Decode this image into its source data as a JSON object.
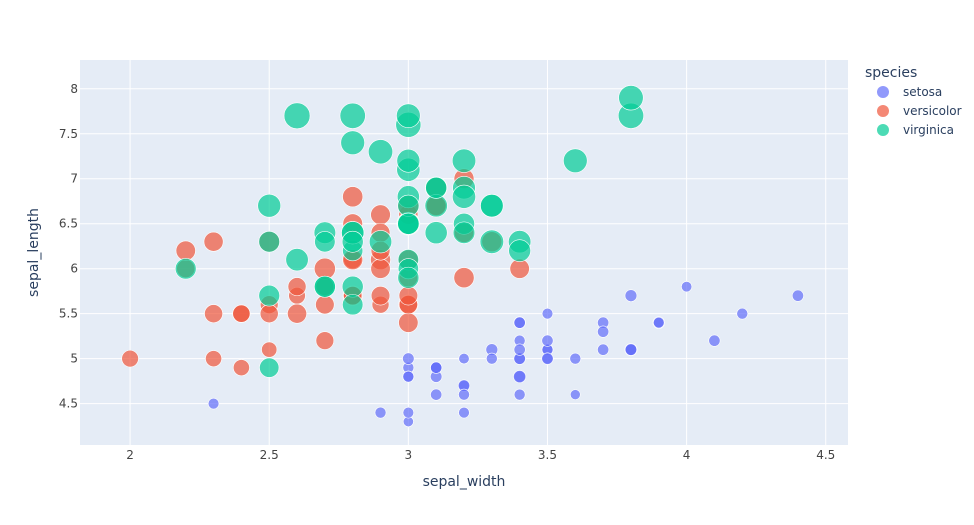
{
  "chart_data": {
    "type": "scatter",
    "xlabel": "sepal_width",
    "ylabel": "sepal_length",
    "xlim": [
      1.82,
      4.58
    ],
    "ylim": [
      4.04,
      8.32
    ],
    "x_ticks": [
      2,
      2.5,
      3,
      3.5,
      4,
      4.5
    ],
    "y_ticks": [
      4.5,
      5,
      5.5,
      6,
      6.5,
      7,
      7.5,
      8
    ],
    "grid": true,
    "size_encoding": "petal_length",
    "legend": {
      "title": "species",
      "placement": "right"
    },
    "series": [
      {
        "name": "setosa",
        "color": "#636efa",
        "points": [
          [
            3.5,
            5.1,
            1.4
          ],
          [
            3.0,
            4.9,
            1.4
          ],
          [
            3.2,
            4.7,
            1.3
          ],
          [
            3.1,
            4.6,
            1.5
          ],
          [
            3.6,
            5.0,
            1.4
          ],
          [
            3.9,
            5.4,
            1.7
          ],
          [
            3.4,
            4.6,
            1.4
          ],
          [
            3.4,
            5.0,
            1.5
          ],
          [
            2.9,
            4.4,
            1.4
          ],
          [
            3.1,
            4.9,
            1.5
          ],
          [
            3.7,
            5.4,
            1.5
          ],
          [
            3.4,
            4.8,
            1.6
          ],
          [
            3.0,
            4.8,
            1.4
          ],
          [
            3.0,
            4.3,
            1.1
          ],
          [
            4.0,
            5.8,
            1.2
          ],
          [
            4.4,
            5.7,
            1.5
          ],
          [
            3.9,
            5.4,
            1.3
          ],
          [
            3.5,
            5.1,
            1.4
          ],
          [
            3.8,
            5.7,
            1.7
          ],
          [
            3.8,
            5.1,
            1.5
          ],
          [
            3.4,
            5.4,
            1.7
          ],
          [
            3.7,
            5.1,
            1.5
          ],
          [
            3.6,
            4.6,
            1.0
          ],
          [
            3.3,
            5.1,
            1.7
          ],
          [
            3.4,
            4.8,
            1.9
          ],
          [
            3.0,
            5.0,
            1.6
          ],
          [
            3.4,
            5.0,
            1.6
          ],
          [
            3.5,
            5.2,
            1.5
          ],
          [
            3.4,
            5.2,
            1.4
          ],
          [
            3.2,
            4.7,
            1.6
          ],
          [
            3.1,
            4.8,
            1.6
          ],
          [
            3.4,
            5.4,
            1.5
          ],
          [
            4.1,
            5.2,
            1.5
          ],
          [
            4.2,
            5.5,
            1.4
          ],
          [
            3.1,
            4.9,
            1.5
          ],
          [
            3.2,
            5.0,
            1.2
          ],
          [
            3.5,
            5.5,
            1.3
          ],
          [
            3.1,
            4.9,
            1.5
          ],
          [
            3.0,
            4.4,
            1.3
          ],
          [
            3.4,
            5.1,
            1.5
          ],
          [
            3.5,
            5.0,
            1.3
          ],
          [
            2.3,
            4.5,
            1.3
          ],
          [
            3.2,
            4.4,
            1.3
          ],
          [
            3.5,
            5.0,
            1.6
          ],
          [
            3.8,
            5.1,
            1.9
          ],
          [
            3.0,
            4.8,
            1.4
          ],
          [
            3.8,
            5.1,
            1.6
          ],
          [
            3.2,
            4.6,
            1.4
          ],
          [
            3.7,
            5.3,
            1.5
          ],
          [
            3.3,
            5.0,
            1.4
          ]
        ]
      },
      {
        "name": "versicolor",
        "color": "#ef553b",
        "points": [
          [
            3.2,
            7.0,
            4.7
          ],
          [
            3.2,
            6.4,
            4.5
          ],
          [
            3.1,
            6.9,
            4.9
          ],
          [
            2.3,
            5.5,
            4.0
          ],
          [
            2.8,
            6.5,
            4.6
          ],
          [
            2.8,
            5.7,
            4.5
          ],
          [
            3.3,
            6.3,
            4.7
          ],
          [
            2.4,
            4.9,
            3.3
          ],
          [
            2.9,
            6.6,
            4.6
          ],
          [
            2.7,
            5.2,
            3.9
          ],
          [
            2.0,
            5.0,
            3.5
          ],
          [
            3.0,
            5.9,
            4.2
          ],
          [
            2.2,
            6.0,
            4.0
          ],
          [
            2.9,
            6.1,
            4.7
          ],
          [
            2.9,
            5.6,
            3.6
          ],
          [
            3.1,
            6.7,
            4.4
          ],
          [
            3.0,
            5.6,
            4.5
          ],
          [
            2.7,
            5.8,
            4.1
          ],
          [
            2.2,
            6.2,
            4.5
          ],
          [
            2.5,
            5.6,
            3.9
          ],
          [
            3.2,
            5.9,
            4.8
          ],
          [
            2.8,
            6.1,
            4.0
          ],
          [
            2.5,
            6.3,
            4.9
          ],
          [
            2.8,
            6.1,
            4.7
          ],
          [
            2.9,
            6.4,
            4.3
          ],
          [
            3.0,
            6.6,
            4.4
          ],
          [
            2.8,
            6.8,
            4.8
          ],
          [
            3.0,
            6.7,
            5.0
          ],
          [
            2.9,
            6.0,
            4.5
          ],
          [
            2.6,
            5.7,
            3.5
          ],
          [
            2.4,
            5.5,
            3.8
          ],
          [
            2.4,
            5.5,
            3.7
          ],
          [
            2.7,
            5.8,
            3.9
          ],
          [
            2.7,
            6.0,
            5.1
          ],
          [
            3.0,
            5.4,
            4.5
          ],
          [
            3.4,
            6.0,
            4.5
          ],
          [
            3.1,
            6.7,
            4.7
          ],
          [
            2.3,
            6.3,
            4.4
          ],
          [
            3.0,
            5.6,
            4.1
          ],
          [
            2.5,
            5.5,
            4.0
          ],
          [
            2.6,
            5.5,
            4.4
          ],
          [
            3.0,
            6.1,
            4.6
          ],
          [
            2.6,
            5.8,
            4.0
          ],
          [
            2.3,
            5.0,
            3.3
          ],
          [
            2.7,
            5.6,
            4.2
          ],
          [
            3.0,
            5.7,
            4.2
          ],
          [
            2.9,
            5.7,
            4.2
          ],
          [
            2.9,
            6.2,
            4.3
          ],
          [
            2.5,
            5.1,
            3.0
          ],
          [
            2.8,
            5.7,
            4.1
          ]
        ]
      },
      {
        "name": "virginica",
        "color": "#00cc96",
        "points": [
          [
            3.3,
            6.3,
            6.0
          ],
          [
            2.7,
            5.8,
            5.1
          ],
          [
            3.0,
            7.1,
            5.9
          ],
          [
            2.9,
            6.3,
            5.6
          ],
          [
            3.0,
            6.5,
            5.8
          ],
          [
            3.0,
            7.6,
            6.6
          ],
          [
            2.5,
            4.9,
            4.5
          ],
          [
            2.9,
            7.3,
            6.3
          ],
          [
            2.5,
            6.7,
            5.8
          ],
          [
            3.6,
            7.2,
            6.1
          ],
          [
            3.2,
            6.5,
            5.1
          ],
          [
            2.7,
            6.4,
            5.3
          ],
          [
            3.0,
            6.8,
            5.5
          ],
          [
            2.5,
            5.7,
            5.0
          ],
          [
            2.8,
            5.8,
            5.1
          ],
          [
            3.2,
            6.4,
            5.3
          ],
          [
            3.0,
            6.5,
            5.5
          ],
          [
            3.8,
            7.7,
            6.7
          ],
          [
            2.6,
            7.7,
            6.9
          ],
          [
            2.2,
            6.0,
            5.0
          ],
          [
            3.2,
            6.9,
            5.7
          ],
          [
            2.8,
            5.6,
            4.9
          ],
          [
            2.8,
            7.7,
            6.7
          ],
          [
            2.7,
            6.3,
            4.9
          ],
          [
            3.3,
            6.7,
            5.7
          ],
          [
            3.2,
            7.2,
            6.0
          ],
          [
            2.8,
            6.2,
            4.8
          ],
          [
            3.0,
            6.1,
            4.9
          ],
          [
            2.8,
            6.4,
            5.6
          ],
          [
            3.0,
            7.2,
            5.8
          ],
          [
            2.8,
            7.4,
            6.1
          ],
          [
            3.8,
            7.9,
            6.4
          ],
          [
            2.8,
            6.4,
            5.6
          ],
          [
            2.8,
            6.3,
            5.1
          ],
          [
            2.6,
            6.1,
            5.6
          ],
          [
            3.0,
            7.7,
            6.1
          ],
          [
            3.4,
            6.3,
            5.6
          ],
          [
            3.1,
            6.4,
            5.5
          ],
          [
            3.0,
            6.0,
            4.8
          ],
          [
            3.1,
            6.9,
            5.4
          ],
          [
            3.1,
            6.7,
            5.6
          ],
          [
            3.1,
            6.9,
            5.1
          ],
          [
            2.7,
            5.8,
            5.1
          ],
          [
            3.2,
            6.8,
            5.9
          ],
          [
            3.3,
            6.7,
            5.7
          ],
          [
            3.0,
            6.7,
            5.2
          ],
          [
            2.5,
            6.3,
            5.0
          ],
          [
            3.0,
            6.5,
            5.2
          ],
          [
            3.4,
            6.2,
            5.4
          ],
          [
            3.0,
            5.9,
            5.1
          ]
        ]
      }
    ]
  }
}
